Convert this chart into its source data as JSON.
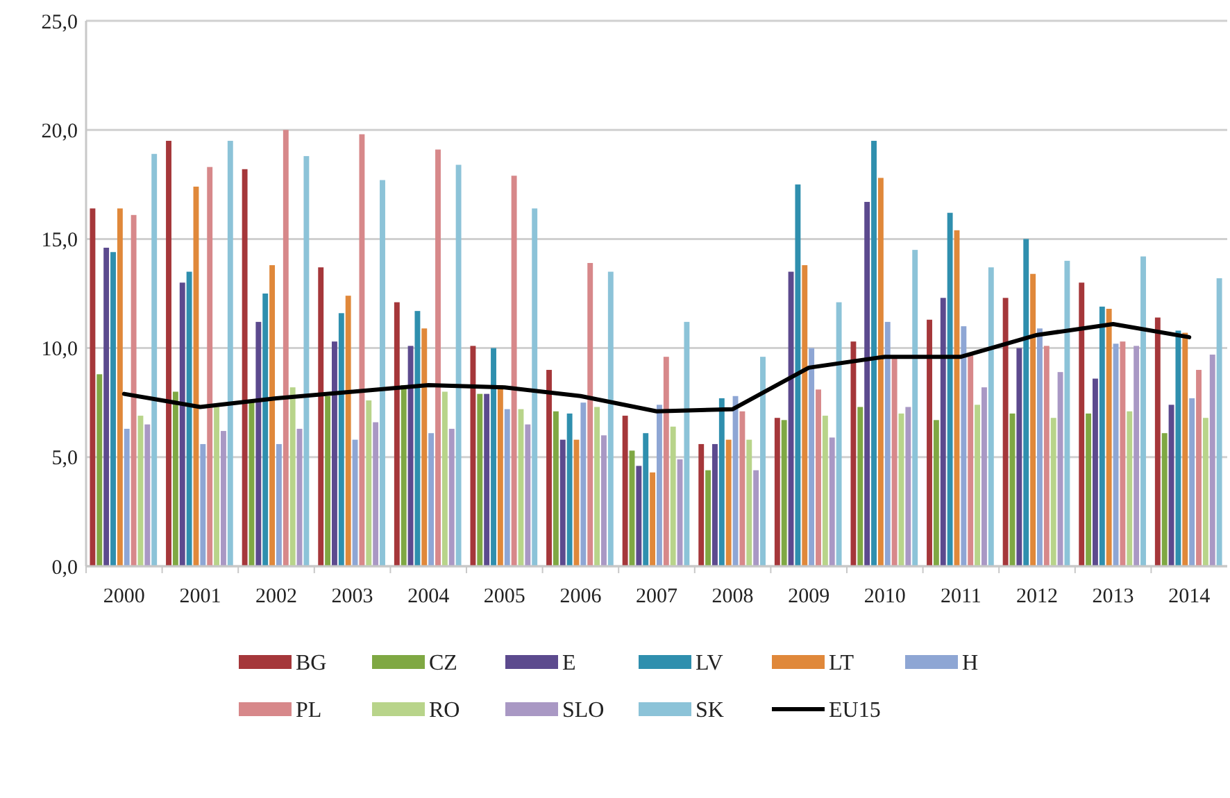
{
  "chart_data": {
    "type": "bar",
    "categories": [
      "2000",
      "2001",
      "2002",
      "2003",
      "2004",
      "2005",
      "2006",
      "2007",
      "2008",
      "2009",
      "2010",
      "2011",
      "2012",
      "2013",
      "2014"
    ],
    "ylim": [
      0,
      25
    ],
    "yticks": [
      {
        "value": 0,
        "label": "0,0"
      },
      {
        "value": 5,
        "label": "5,0"
      },
      {
        "value": 10,
        "label": "10,0"
      },
      {
        "value": 15,
        "label": "15,0"
      },
      {
        "value": 20,
        "label": "20,0"
      },
      {
        "value": 25,
        "label": "25,0"
      }
    ],
    "grid": "y",
    "legend": "bottom",
    "series": [
      {
        "name": "BG",
        "color": "#a5373a",
        "values": [
          16.4,
          19.5,
          18.2,
          13.7,
          12.1,
          10.1,
          9.0,
          6.9,
          5.6,
          6.8,
          10.3,
          11.3,
          12.3,
          13.0,
          11.4
        ]
      },
      {
        "name": "CZ",
        "color": "#7fa843",
        "values": [
          8.8,
          8.0,
          7.6,
          7.8,
          8.3,
          7.9,
          7.1,
          5.3,
          4.4,
          6.7,
          7.3,
          6.7,
          7.0,
          7.0,
          6.1
        ]
      },
      {
        "name": "E",
        "color": "#5c4a8e",
        "values": [
          14.6,
          13.0,
          11.2,
          10.3,
          10.1,
          7.9,
          5.8,
          4.6,
          5.6,
          13.5,
          16.7,
          12.3,
          10.0,
          8.6,
          7.4
        ]
      },
      {
        "name": "LV",
        "color": "#2f8fae",
        "values": [
          14.4,
          13.5,
          12.5,
          11.6,
          11.7,
          10.0,
          7.0,
          6.1,
          7.7,
          17.5,
          19.5,
          16.2,
          15.0,
          11.9,
          10.8
        ]
      },
      {
        "name": "LT",
        "color": "#e0883a",
        "values": [
          16.4,
          17.4,
          13.8,
          12.4,
          10.9,
          8.3,
          5.8,
          4.3,
          5.8,
          13.8,
          17.8,
          15.4,
          13.4,
          11.8,
          10.7
        ]
      },
      {
        "name": "H",
        "color": "#8ea6d4",
        "values": [
          6.3,
          5.6,
          5.6,
          5.8,
          6.1,
          7.2,
          7.5,
          7.4,
          7.8,
          10.0,
          11.2,
          11.0,
          10.9,
          10.2,
          7.7
        ]
      },
      {
        "name": "PL",
        "color": "#d7888a",
        "values": [
          16.1,
          18.3,
          20.0,
          19.8,
          19.1,
          17.9,
          13.9,
          9.6,
          7.1,
          8.1,
          9.6,
          9.7,
          10.1,
          10.3,
          9.0
        ]
      },
      {
        "name": "RO",
        "color": "#b8d48a",
        "values": [
          6.9,
          7.3,
          8.2,
          7.6,
          8.0,
          7.2,
          7.3,
          6.4,
          5.8,
          6.9,
          7.0,
          7.4,
          6.8,
          7.1,
          6.8
        ]
      },
      {
        "name": "SLO",
        "color": "#a998c4",
        "values": [
          6.5,
          6.2,
          6.3,
          6.6,
          6.3,
          6.5,
          6.0,
          4.9,
          4.4,
          5.9,
          7.3,
          8.2,
          8.9,
          10.1,
          9.7
        ]
      },
      {
        "name": "SK",
        "color": "#8cc3d8",
        "values": [
          18.9,
          19.5,
          18.8,
          17.7,
          18.4,
          16.4,
          13.5,
          11.2,
          9.6,
          12.1,
          14.5,
          13.7,
          14.0,
          14.2,
          13.2
        ]
      },
      {
        "name": "EU15",
        "type": "line",
        "color": "#000000",
        "values": [
          7.9,
          7.3,
          7.7,
          8.0,
          8.3,
          8.2,
          7.8,
          7.1,
          7.2,
          9.1,
          9.6,
          9.6,
          10.6,
          11.1,
          10.5
        ]
      }
    ]
  }
}
